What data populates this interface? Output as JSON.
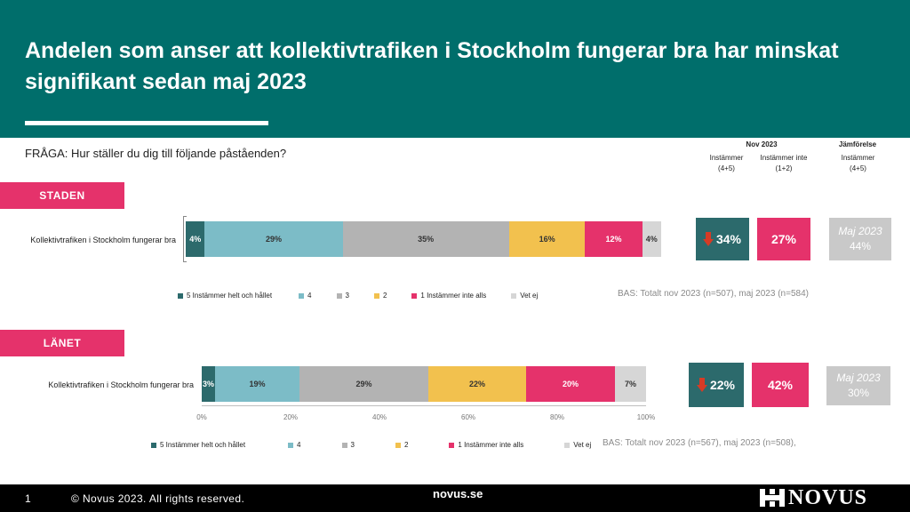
{
  "header": {
    "title": "Andelen som anser att kollektivtrafiken i Stockholm fungerar bra har minskat signifikant sedan maj 2023"
  },
  "question": "FRÅGA: Hur ställer du dig till följande påståenden?",
  "columns": {
    "period": "Nov 2023",
    "comparison": "Jämförelse",
    "agree": "Instämmer (4+5)",
    "disagree": "Instämmer inte (1+2)",
    "comparison_agree": "Instämmer (4+5)"
  },
  "colors": {
    "5": "#2c6a6c",
    "4": "#7cbcc7",
    "3": "#b3b3b3",
    "2": "#f2c14e",
    "1": "#e5326b",
    "vetej": "#d6d6d6",
    "header": "#006e6b"
  },
  "legend": {
    "items": [
      {
        "label": "5 Instämmer helt och hållet",
        "key": "5"
      },
      {
        "label": "4",
        "key": "4"
      },
      {
        "label": "3",
        "key": "3"
      },
      {
        "label": "2",
        "key": "2"
      },
      {
        "label": "1 Instämmer inte alls",
        "key": "1"
      },
      {
        "label": "Vet ej",
        "key": "vetej"
      }
    ]
  },
  "chart_data": [
    {
      "type": "bar",
      "orientation": "horizontal-stacked",
      "section": "STADEN",
      "categories": [
        "Kollektivtrafiken i Stockholm fungerar bra"
      ],
      "series": [
        {
          "name": "5 Instämmer helt och hållet",
          "values": [
            4
          ]
        },
        {
          "name": "4",
          "values": [
            29
          ]
        },
        {
          "name": "3",
          "values": [
            35
          ]
        },
        {
          "name": "2",
          "values": [
            16
          ]
        },
        {
          "name": "1 Instämmer inte alls",
          "values": [
            12
          ]
        },
        {
          "name": "Vet ej",
          "values": [
            4
          ]
        }
      ],
      "labels": [
        "4%",
        "29%",
        "35%",
        "16%",
        "12%",
        "4%"
      ],
      "summary": {
        "agree": "34%",
        "disagree": "27%",
        "comparison_label": "Maj 2023",
        "comparison_value": "44%"
      },
      "bas": "BAS: Totalt nov 2023 (n=507), maj 2023 (n=584)"
    },
    {
      "type": "bar",
      "orientation": "horizontal-stacked",
      "section": "LÄNET",
      "categories": [
        "Kollektivtrafiken i Stockholm fungerar bra"
      ],
      "series": [
        {
          "name": "5 Instämmer helt och hållet",
          "values": [
            3
          ]
        },
        {
          "name": "4",
          "values": [
            19
          ]
        },
        {
          "name": "3",
          "values": [
            29
          ]
        },
        {
          "name": "2",
          "values": [
            22
          ]
        },
        {
          "name": "1 Instämmer inte alls",
          "values": [
            20
          ]
        },
        {
          "name": "Vet ej",
          "values": [
            7
          ]
        }
      ],
      "labels": [
        "3%",
        "19%",
        "29%",
        "22%",
        "20%",
        "7%"
      ],
      "xlim": [
        0,
        100
      ],
      "xticks": [
        "0%",
        "20%",
        "40%",
        "60%",
        "80%",
        "100%"
      ],
      "summary": {
        "agree": "22%",
        "disagree": "42%",
        "comparison_label": "Maj 2023",
        "comparison_value": "30%"
      },
      "bas": "BAS: Totalt nov 2023 (n=567), maj 2023 (n=508),"
    }
  ],
  "footer": {
    "page": "1",
    "copyright": "© Novus 2023. All rights reserved.",
    "site": "novus.se",
    "logo": "NOVUS"
  }
}
